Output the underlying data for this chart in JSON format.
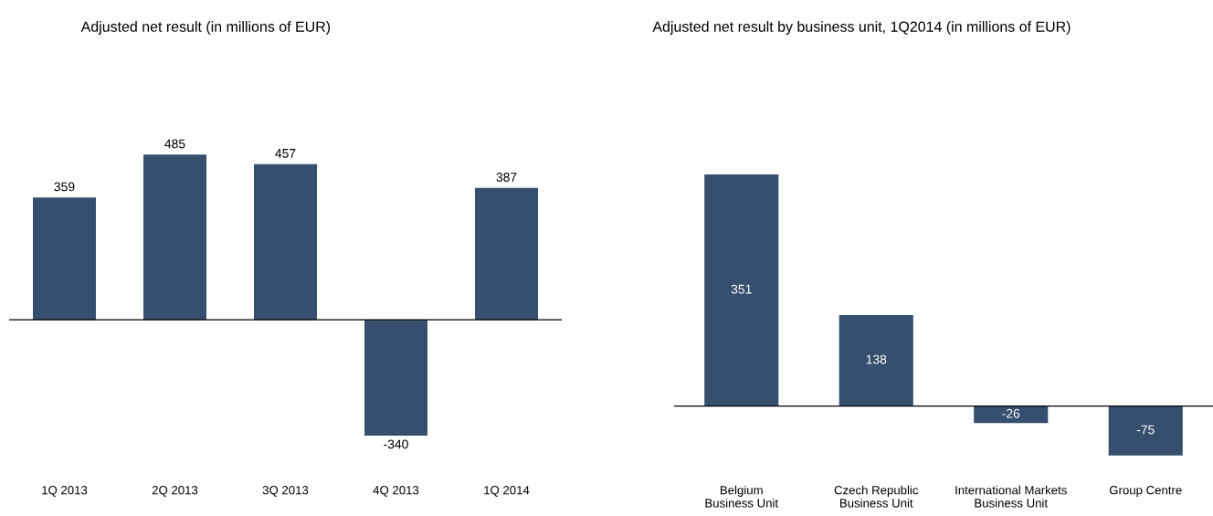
{
  "chart_data": [
    {
      "type": "bar",
      "title": "Adjusted net result (in millions of EUR)",
      "categories": [
        "1Q 2013",
        "2Q 2013",
        "3Q 2013",
        "4Q 2013",
        "1Q 2014"
      ],
      "values": [
        359,
        485,
        457,
        -340,
        387
      ],
      "color": "#364f6e",
      "data_labels": true
    },
    {
      "type": "bar",
      "title": "Adjusted net result by business unit, 1Q2014 (in millions of EUR)",
      "categories": [
        "Belgium\nBusiness Unit",
        "Czech Republic\nBusiness Unit",
        "International Markets\nBusiness Unit",
        "Group Centre"
      ],
      "values": [
        351,
        138,
        -26,
        -75
      ],
      "color": "#364f6e",
      "data_labels": true
    }
  ]
}
